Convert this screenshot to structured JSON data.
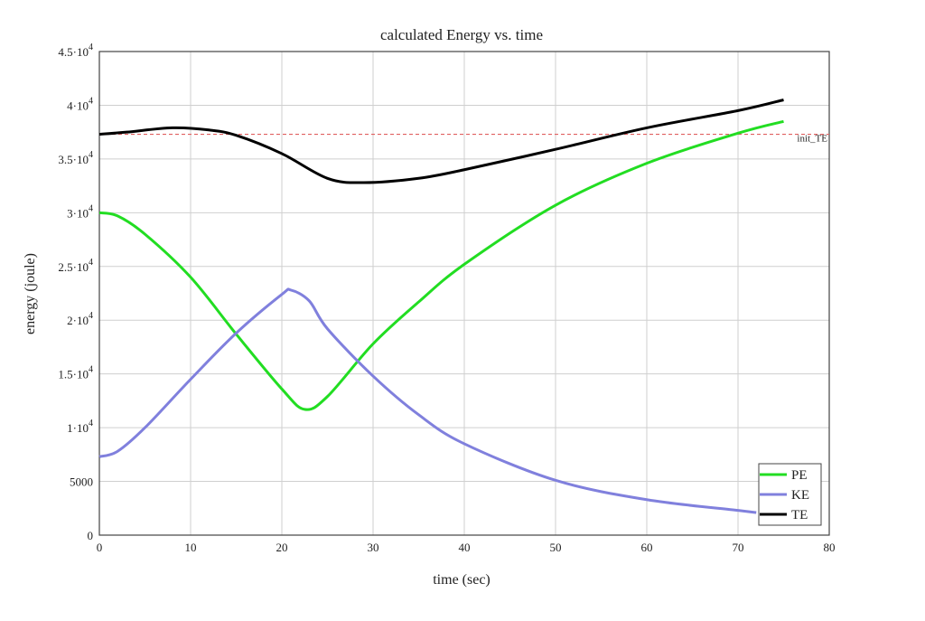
{
  "chart_data": {
    "type": "line",
    "title": "calculated Energy vs. time",
    "xlabel": "time (sec)",
    "ylabel": "energy (joule)",
    "xlim": [
      0,
      80
    ],
    "ylim": [
      0,
      45000
    ],
    "grid": true,
    "x_ticks": [
      0,
      10,
      20,
      30,
      40,
      50,
      60,
      70,
      80
    ],
    "x_tick_labels": [
      "0",
      "10",
      "20",
      "30",
      "40",
      "50",
      "60",
      "70",
      "80"
    ],
    "y_ticks": [
      0,
      5000,
      10000,
      15000,
      20000,
      25000,
      30000,
      35000,
      40000,
      45000
    ],
    "y_tick_labels": [
      {
        "mant": "0",
        "exp": ""
      },
      {
        "mant": "5000",
        "exp": ""
      },
      {
        "mant": "1·10",
        "exp": "4"
      },
      {
        "mant": "1.5·10",
        "exp": "4"
      },
      {
        "mant": "2·10",
        "exp": "4"
      },
      {
        "mant": "2.5·10",
        "exp": "4"
      },
      {
        "mant": "3·10",
        "exp": "4"
      },
      {
        "mant": "3.5·10",
        "exp": "4"
      },
      {
        "mant": "4·10",
        "exp": "4"
      },
      {
        "mant": "4.5·10",
        "exp": "4"
      }
    ],
    "legend_position": "bottom-right",
    "series": [
      {
        "name": "PE",
        "color": "#22dd22",
        "x": [
          0,
          2,
          5,
          10,
          15,
          20,
          22.5,
          25,
          30,
          35,
          40,
          50,
          60,
          70,
          75
        ],
        "y": [
          30000,
          29700,
          28000,
          24000,
          18700,
          13600,
          11700,
          12900,
          17800,
          21700,
          25200,
          30700,
          34600,
          37400,
          38500
        ]
      },
      {
        "name": "KE",
        "color": "#8080dd",
        "x": [
          0,
          2,
          5,
          10,
          15,
          20,
          21,
          23,
          25,
          30,
          35,
          40,
          50,
          60,
          70,
          72
        ],
        "y": [
          7300,
          7800,
          10000,
          14500,
          18800,
          22400,
          22800,
          21800,
          19200,
          14800,
          11200,
          8500,
          5100,
          3300,
          2300,
          2100
        ]
      },
      {
        "name": "TE",
        "color": "#000000",
        "x": [
          0,
          3,
          8,
          12,
          15,
          20,
          25,
          29,
          35,
          40,
          50,
          60,
          70,
          75
        ],
        "y": [
          37300,
          37500,
          37900,
          37700,
          37200,
          35500,
          33200,
          32800,
          33200,
          34000,
          35900,
          37900,
          39500,
          40500
        ]
      }
    ],
    "reference_line": {
      "name": "init_TE",
      "y": 37300,
      "color": "#e06060"
    }
  }
}
